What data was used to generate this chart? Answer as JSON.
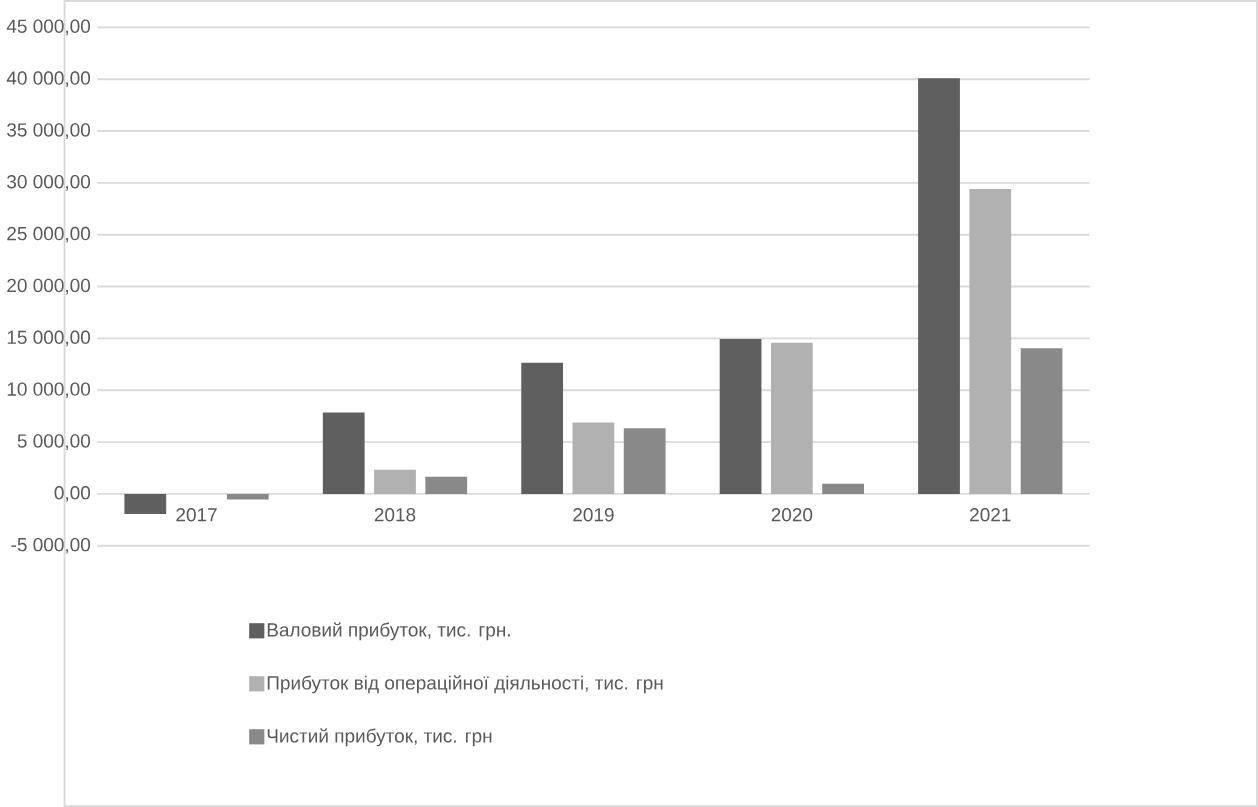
{
  "chart_data": {
    "type": "bar",
    "categories": [
      "2017",
      "2018",
      "2019",
      "2020",
      "2021"
    ],
    "series": [
      {
        "name": "Валовий прибуток, тис. грн.",
        "color": "#5f5f5f",
        "values": [
          -1930,
          7860,
          12660,
          14940,
          40090
        ]
      },
      {
        "name": "Прибуток від операційної діяльності, тис. грн",
        "color": "#b1b1b1",
        "values": [
          0,
          2320,
          6880,
          14570,
          29420
        ]
      },
      {
        "name": "Чистий прибуток, тис. грн",
        "color": "#898989",
        "values": [
          -550,
          1650,
          6330,
          990,
          14060
        ]
      }
    ],
    "ylim": [
      -5000,
      45000
    ],
    "yticks": [
      {
        "value": -5000,
        "label": "-5 000,00"
      },
      {
        "value": 0,
        "label": "0,00"
      },
      {
        "value": 5000,
        "label": "5 000,00"
      },
      {
        "value": 10000,
        "label": "10 000,00"
      },
      {
        "value": 15000,
        "label": "15 000,00"
      },
      {
        "value": 20000,
        "label": "20 000,00"
      },
      {
        "value": 25000,
        "label": "25 000,00"
      },
      {
        "value": 30000,
        "label": "30 000,00"
      },
      {
        "value": 35000,
        "label": "35 000,00"
      },
      {
        "value": 40000,
        "label": "40 000,00"
      },
      {
        "value": 45000,
        "label": "45 000,00"
      }
    ],
    "grid": "y",
    "legend": "bottom"
  }
}
